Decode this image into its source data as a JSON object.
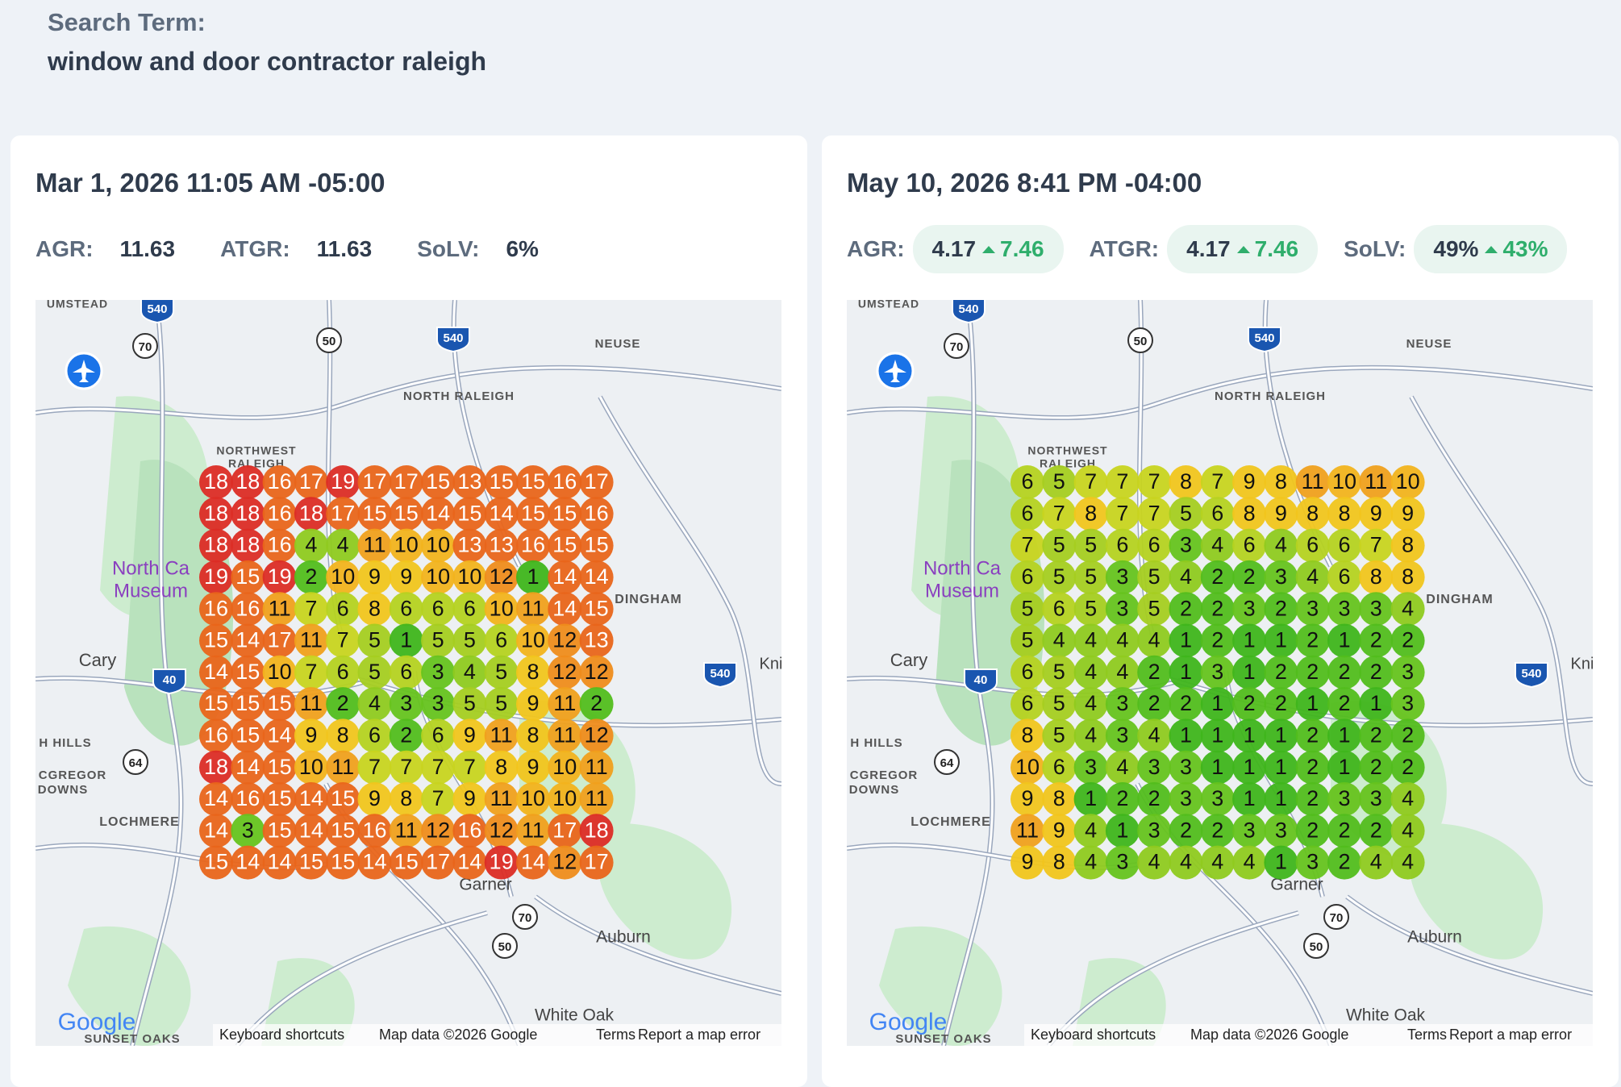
{
  "header": {
    "label": "Search Term:",
    "term": "window and door contractor raleigh"
  },
  "panels": [
    {
      "timestamp": "Mar 1, 2026 11:05 AM -05:00",
      "metrics": [
        {
          "label": "AGR:",
          "value": "11.63"
        },
        {
          "label": "ATGR:",
          "value": "11.63"
        },
        {
          "label": "SoLV:",
          "value": "6%"
        }
      ],
      "grid": [
        [
          18,
          18,
          16,
          17,
          19,
          17,
          17,
          15,
          13,
          15,
          15,
          16,
          17
        ],
        [
          18,
          18,
          16,
          18,
          17,
          15,
          15,
          14,
          15,
          14,
          15,
          15,
          16
        ],
        [
          18,
          18,
          16,
          4,
          4,
          11,
          10,
          10,
          13,
          13,
          16,
          15,
          15
        ],
        [
          19,
          15,
          19,
          2,
          10,
          9,
          9,
          10,
          10,
          12,
          1,
          14,
          14
        ],
        [
          16,
          16,
          11,
          7,
          6,
          8,
          6,
          6,
          6,
          10,
          11,
          14,
          15
        ],
        [
          15,
          14,
          17,
          11,
          7,
          5,
          1,
          5,
          5,
          6,
          10,
          12,
          13
        ],
        [
          14,
          15,
          10,
          7,
          6,
          5,
          6,
          3,
          4,
          5,
          8,
          12,
          12
        ],
        [
          15,
          15,
          15,
          11,
          2,
          4,
          3,
          3,
          5,
          5,
          9,
          11,
          2
        ],
        [
          16,
          15,
          14,
          9,
          8,
          6,
          2,
          6,
          9,
          11,
          8,
          11,
          12
        ],
        [
          18,
          14,
          15,
          10,
          11,
          7,
          7,
          7,
          7,
          8,
          9,
          10,
          11
        ],
        [
          14,
          16,
          15,
          14,
          15,
          9,
          8,
          7,
          9,
          11,
          10,
          10,
          11
        ],
        [
          14,
          3,
          15,
          14,
          15,
          16,
          11,
          12,
          16,
          12,
          11,
          17,
          18
        ],
        [
          15,
          14,
          14,
          15,
          15,
          14,
          15,
          17,
          14,
          19,
          14,
          12,
          17
        ]
      ]
    },
    {
      "timestamp": "May 10, 2026 8:41 PM -04:00",
      "metrics": [
        {
          "label": "AGR:",
          "value": "4.17",
          "change": "7.46"
        },
        {
          "label": "ATGR:",
          "value": "4.17",
          "change": "7.46"
        },
        {
          "label": "SoLV:",
          "value": "49%",
          "change": "43%"
        }
      ],
      "grid": [
        [
          6,
          5,
          7,
          7,
          7,
          8,
          7,
          9,
          8,
          11,
          10,
          11,
          10
        ],
        [
          6,
          7,
          8,
          7,
          7,
          5,
          6,
          8,
          9,
          8,
          8,
          9,
          9
        ],
        [
          7,
          5,
          5,
          6,
          6,
          3,
          4,
          6,
          4,
          6,
          6,
          7,
          8
        ],
        [
          6,
          5,
          5,
          3,
          5,
          4,
          2,
          2,
          3,
          4,
          6,
          8,
          8
        ],
        [
          5,
          6,
          5,
          3,
          5,
          2,
          2,
          3,
          2,
          3,
          3,
          3,
          4
        ],
        [
          5,
          4,
          4,
          4,
          4,
          1,
          2,
          1,
          1,
          2,
          1,
          2,
          2
        ],
        [
          6,
          5,
          4,
          4,
          2,
          1,
          3,
          1,
          2,
          2,
          2,
          2,
          3
        ],
        [
          6,
          5,
          4,
          3,
          2,
          2,
          1,
          2,
          2,
          1,
          2,
          1,
          3
        ],
        [
          8,
          5,
          4,
          3,
          4,
          1,
          1,
          1,
          1,
          2,
          1,
          2,
          2
        ],
        [
          10,
          6,
          3,
          4,
          3,
          3,
          1,
          1,
          1,
          2,
          1,
          2,
          2
        ],
        [
          9,
          8,
          1,
          2,
          2,
          3,
          3,
          1,
          1,
          2,
          3,
          3,
          4
        ],
        [
          11,
          9,
          4,
          1,
          3,
          2,
          2,
          3,
          3,
          2,
          2,
          2,
          4
        ],
        [
          9,
          8,
          4,
          3,
          4,
          4,
          4,
          4,
          1,
          3,
          2,
          4,
          4
        ]
      ]
    }
  ],
  "map": {
    "labels": [
      "UMSTEAD",
      "NEUSE",
      "NORTH RALEIGH",
      "NORTHWEST",
      "RALEIGH",
      "North Ca",
      "Museum",
      "Cary",
      "DINGHAM",
      "Kni",
      "H HILLS",
      "CGREGOR",
      "DOWNS",
      "LOCHMERE",
      "Garner",
      "Auburn",
      "White Oak",
      "SUNSET OAKS"
    ],
    "shields": [
      "540",
      "70",
      "50",
      "540",
      "40",
      "64",
      "540",
      "70",
      "50"
    ],
    "logo": "Google",
    "footer": [
      "Keyboard shortcuts",
      "Map data ©2026 Google",
      "Terms",
      "Report a map error"
    ]
  }
}
